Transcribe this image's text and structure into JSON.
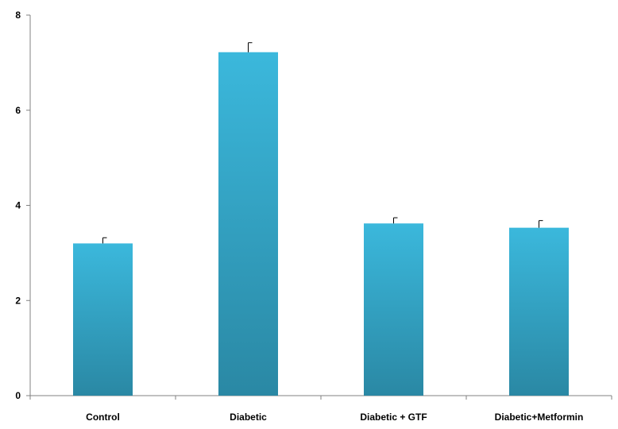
{
  "chart_data": {
    "type": "bar",
    "categories": [
      "Control",
      "Diabetic",
      "Diabetic + GTF",
      "Diabetic+Metformin"
    ],
    "values": [
      3.2,
      7.22,
      3.62,
      3.53
    ],
    "errors": [
      0.12,
      0.2,
      0.12,
      0.15
    ],
    "ylim": [
      0,
      8
    ],
    "yticks": [
      0,
      2,
      4,
      6,
      8
    ],
    "title": "",
    "xlabel": "",
    "ylabel": "",
    "grid": false,
    "colors": {
      "bar_top": "#3bb8dc",
      "bar_bottom": "#2a88a4",
      "axis": "#808080"
    }
  }
}
